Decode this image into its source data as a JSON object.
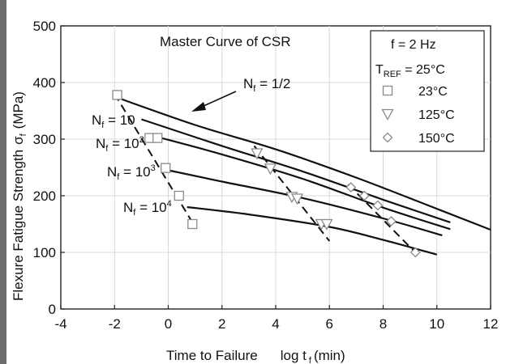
{
  "chart_data": {
    "type": "line",
    "title": "Master Curve of CSR",
    "xlabel": "Time to Failure",
    "xlabel_suffix": "log t",
    "xlabel_sub": "f",
    "xlabel_unit": "(min)",
    "ylabel": "Flexure Fatigue Strength",
    "ylabel_symbol": "σ",
    "ylabel_sub": "f",
    "ylabel_unit": "(MPa)",
    "xlim": [
      -4,
      12
    ],
    "ylim": [
      0,
      500
    ],
    "x_ticks": [
      -4,
      -2,
      0,
      2,
      4,
      6,
      8,
      10,
      12
    ],
    "y_ticks": [
      0,
      100,
      200,
      300,
      400,
      500
    ],
    "x_tick_labels": [
      "-4",
      "-2",
      "0",
      "2",
      "4",
      "6",
      "8",
      "10",
      "12"
    ],
    "y_tick_labels": [
      "0",
      "100",
      "200",
      "300",
      "400",
      "500"
    ],
    "grid": true,
    "legend": {
      "position": "top-right",
      "header": "f = 2 Hz",
      "tref_prefix": "T",
      "tref_sub": "REF",
      "tref_suffix": " = 25°C",
      "entries": [
        {
          "label": "23°C",
          "marker": "square"
        },
        {
          "label": "125°C",
          "marker": "triangle-down"
        },
        {
          "label": "150°C",
          "marker": "diamond"
        }
      ]
    },
    "curves": [
      {
        "prefix": "N",
        "sub": "f",
        "suffix": " = 1/2",
        "x": [
          -2.0,
          1,
          4,
          7,
          10,
          12
        ],
        "y": [
          375,
          325,
          282,
          232,
          177,
          140
        ]
      },
      {
        "prefix": "N",
        "sub": "f",
        "suffix": " = 10",
        "x": [
          -1.0,
          2,
          5,
          8,
          10.5
        ],
        "y": [
          335,
          288,
          243,
          193,
          153
        ]
      },
      {
        "prefix": "N",
        "sub": "f",
        "suffix": " = 10",
        "sup": "2",
        "x": [
          -0.5,
          2,
          5,
          8,
          10.5
        ],
        "y": [
          305,
          273,
          230,
          179,
          141
        ]
      },
      {
        "prefix": "N",
        "sub": "f",
        "suffix": " = 10",
        "sup": "3",
        "x": [
          0.0,
          2,
          5,
          8,
          10.2
        ],
        "y": [
          245,
          225,
          196,
          160,
          130
        ]
      },
      {
        "prefix": "N",
        "sub": "f",
        "suffix": " = 10",
        "sup": "4",
        "x": [
          0.7,
          3,
          6,
          8,
          10
        ],
        "y": [
          180,
          167,
          145,
          122,
          96
        ]
      }
    ],
    "dashed_lines": [
      {
        "x": [
          -2.0,
          1.0
        ],
        "y": [
          380,
          145
        ]
      },
      {
        "x": [
          3.2,
          6.0
        ],
        "y": [
          288,
          120
        ]
      },
      {
        "x": [
          6.7,
          9.3
        ],
        "y": [
          220,
          95
        ]
      }
    ],
    "series": [
      {
        "name": "23°C",
        "marker": "square",
        "x": [
          -1.9,
          -0.7,
          -0.4,
          -0.1,
          0.4,
          0.9
        ],
        "y": [
          378,
          302,
          302,
          249,
          200,
          150
        ]
      },
      {
        "name": "125°C",
        "marker": "triangle-down",
        "x": [
          3.3,
          3.8,
          4.6,
          4.8,
          5.7,
          5.9
        ],
        "y": [
          275,
          248,
          198,
          195,
          150,
          150
        ]
      },
      {
        "name": "150°C",
        "marker": "diamond",
        "x": [
          6.8,
          7.3,
          7.8,
          8.3,
          9.2
        ],
        "y": [
          215,
          200,
          183,
          155,
          100
        ]
      }
    ]
  }
}
